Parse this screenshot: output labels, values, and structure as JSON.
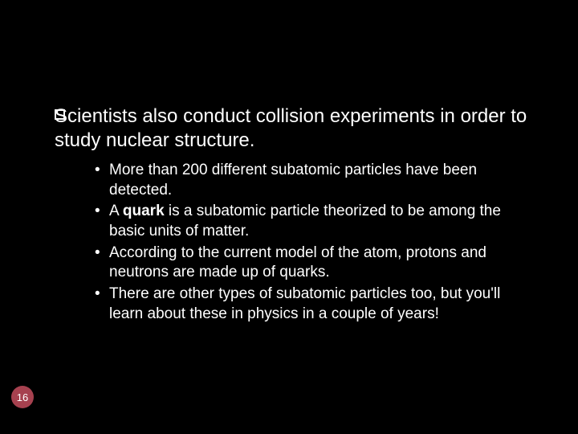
{
  "slide": {
    "main_point": "Scientists also conduct collision experiments in order to study nuclear structure.",
    "bullets": [
      {
        "pre": "More than 200 different subatomic particles have been detected.",
        "bold": "",
        "post": ""
      },
      {
        "pre": "A ",
        "bold": "quark",
        "post": " is a subatomic particle theorized to be among the basic units of matter."
      },
      {
        "pre": "According to the current model of the atom, protons and neutrons are made up of quarks.",
        "bold": "",
        "post": ""
      },
      {
        "pre": "There are other types of subatomic particles too, but you'll learn about these in physics in a couple of years!",
        "bold": "",
        "post": ""
      }
    ],
    "page_number": "16"
  },
  "style": {
    "background_color": "#000000",
    "text_color": "#ffffff",
    "main_fontsize": 24,
    "sub_fontsize": 19,
    "page_badge_bg": "#a6414f",
    "page_badge_text": "#ffffff",
    "bullet_square_border": "#ffffff"
  }
}
